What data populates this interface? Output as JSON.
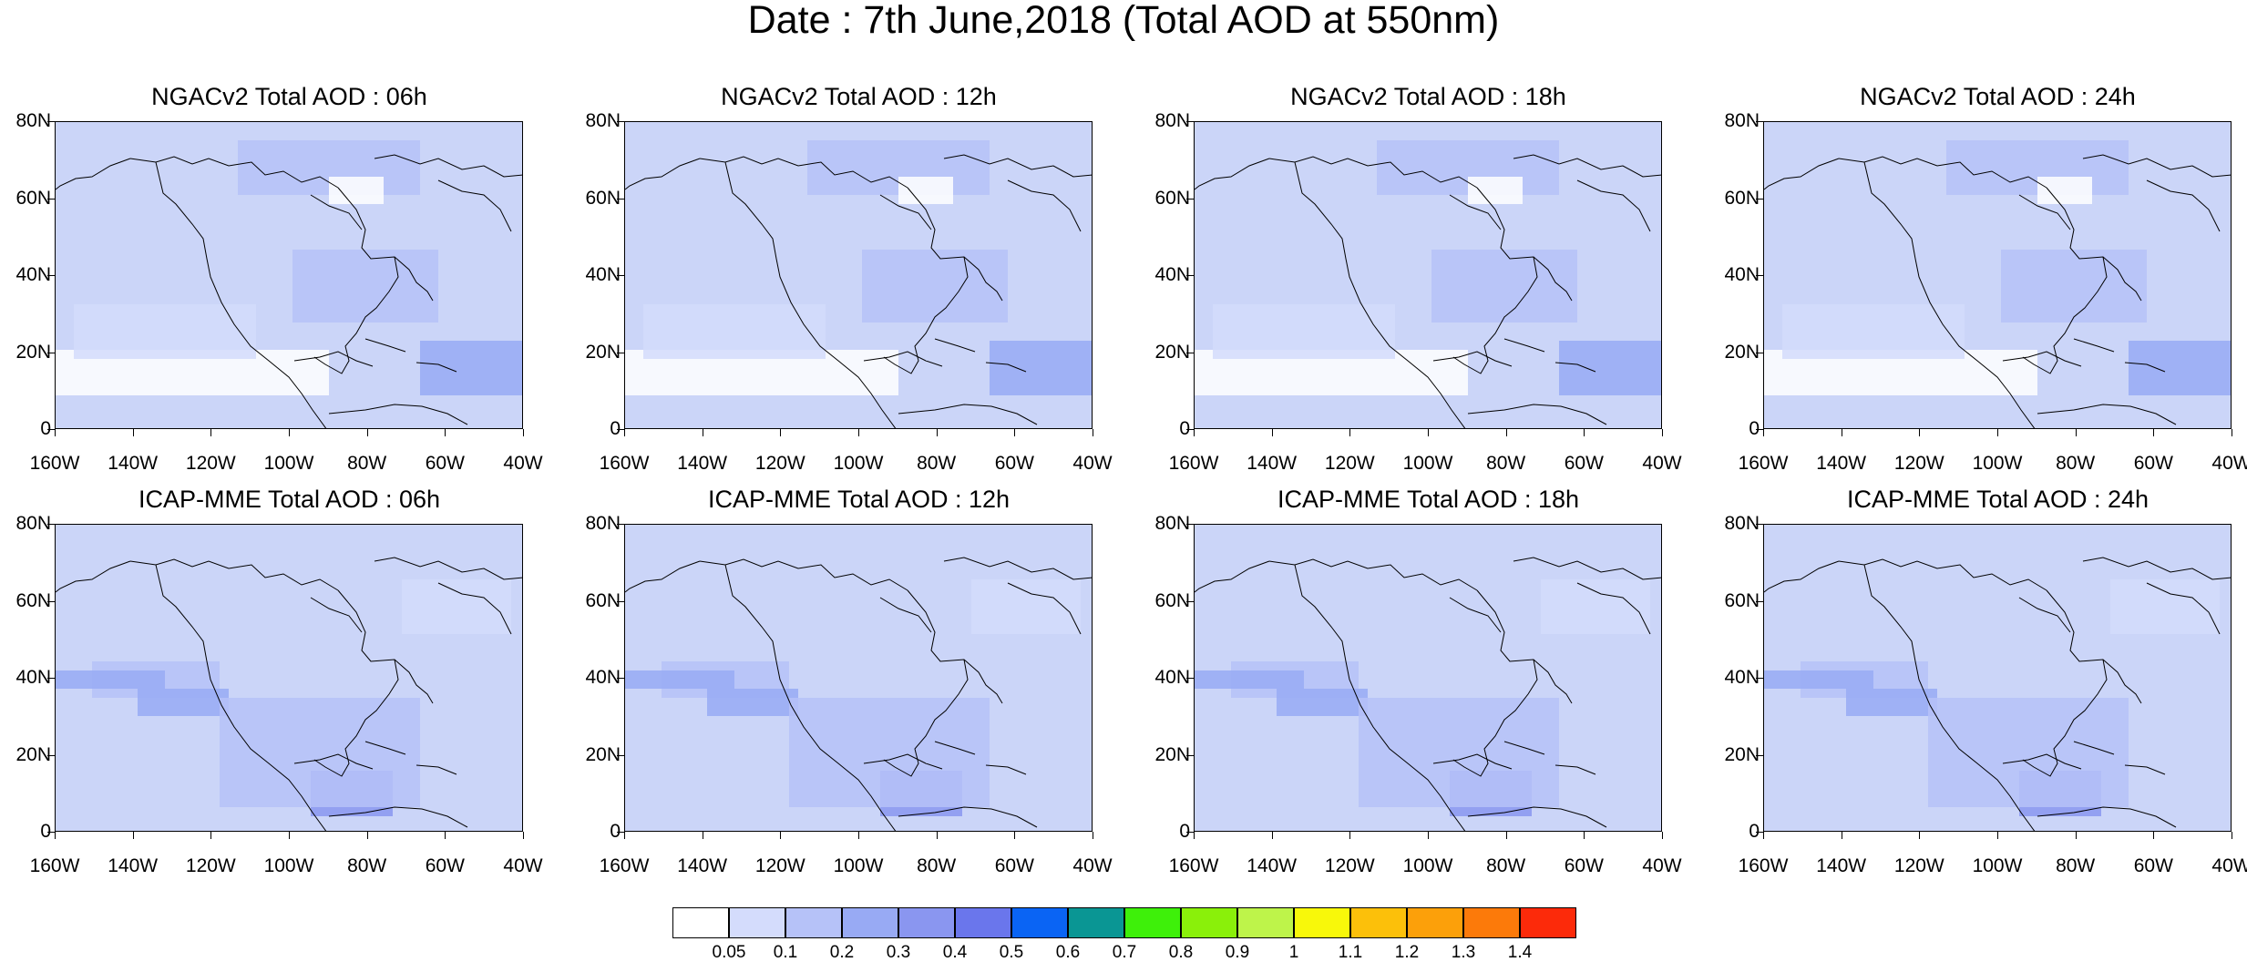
{
  "title": "Date : 7th June,2018 (Total AOD at 550nm)",
  "lat_ticks": [
    "80N",
    "60N",
    "40N",
    "20N",
    "0"
  ],
  "lon_ticks": [
    "160W",
    "140W",
    "120W",
    "100W",
    "80W",
    "60W",
    "40W"
  ],
  "panels": [
    {
      "title": "NGACv2 Total AOD : 06h",
      "model": "NGACv2",
      "hour": "06h"
    },
    {
      "title": "NGACv2 Total AOD : 12h",
      "model": "NGACv2",
      "hour": "12h"
    },
    {
      "title": "NGACv2 Total AOD : 18h",
      "model": "NGACv2",
      "hour": "18h"
    },
    {
      "title": "NGACv2 Total AOD : 24h",
      "model": "NGACv2",
      "hour": "24h"
    },
    {
      "title": "ICAP-MME Total AOD : 06h",
      "model": "ICAP-MME",
      "hour": "06h"
    },
    {
      "title": "ICAP-MME Total AOD : 12h",
      "model": "ICAP-MME",
      "hour": "12h"
    },
    {
      "title": "ICAP-MME Total AOD : 18h",
      "model": "ICAP-MME",
      "hour": "18h"
    },
    {
      "title": "ICAP-MME Total AOD : 24h",
      "model": "ICAP-MME",
      "hour": "24h"
    }
  ],
  "colorbar": {
    "labels": [
      "0.05",
      "0.1",
      "0.2",
      "0.3",
      "0.4",
      "0.5",
      "0.6",
      "0.7",
      "0.8",
      "0.9",
      "1",
      "1.1",
      "1.2",
      "1.3",
      "1.4"
    ],
    "colors": [
      "#ffffff",
      "#d4dcfc",
      "#b6c2f8",
      "#98aaf4",
      "#8a96f0",
      "#6a76ec",
      "#0a64f4",
      "#0a9694",
      "#3ef00a",
      "#8af00a",
      "#bef44a",
      "#f8f80a",
      "#fcc00a",
      "#fca00a",
      "#fc7a0a",
      "#fc2a0a"
    ]
  },
  "colors": {
    "map_background": "#cbd5f8",
    "coastline": "#000000"
  }
}
